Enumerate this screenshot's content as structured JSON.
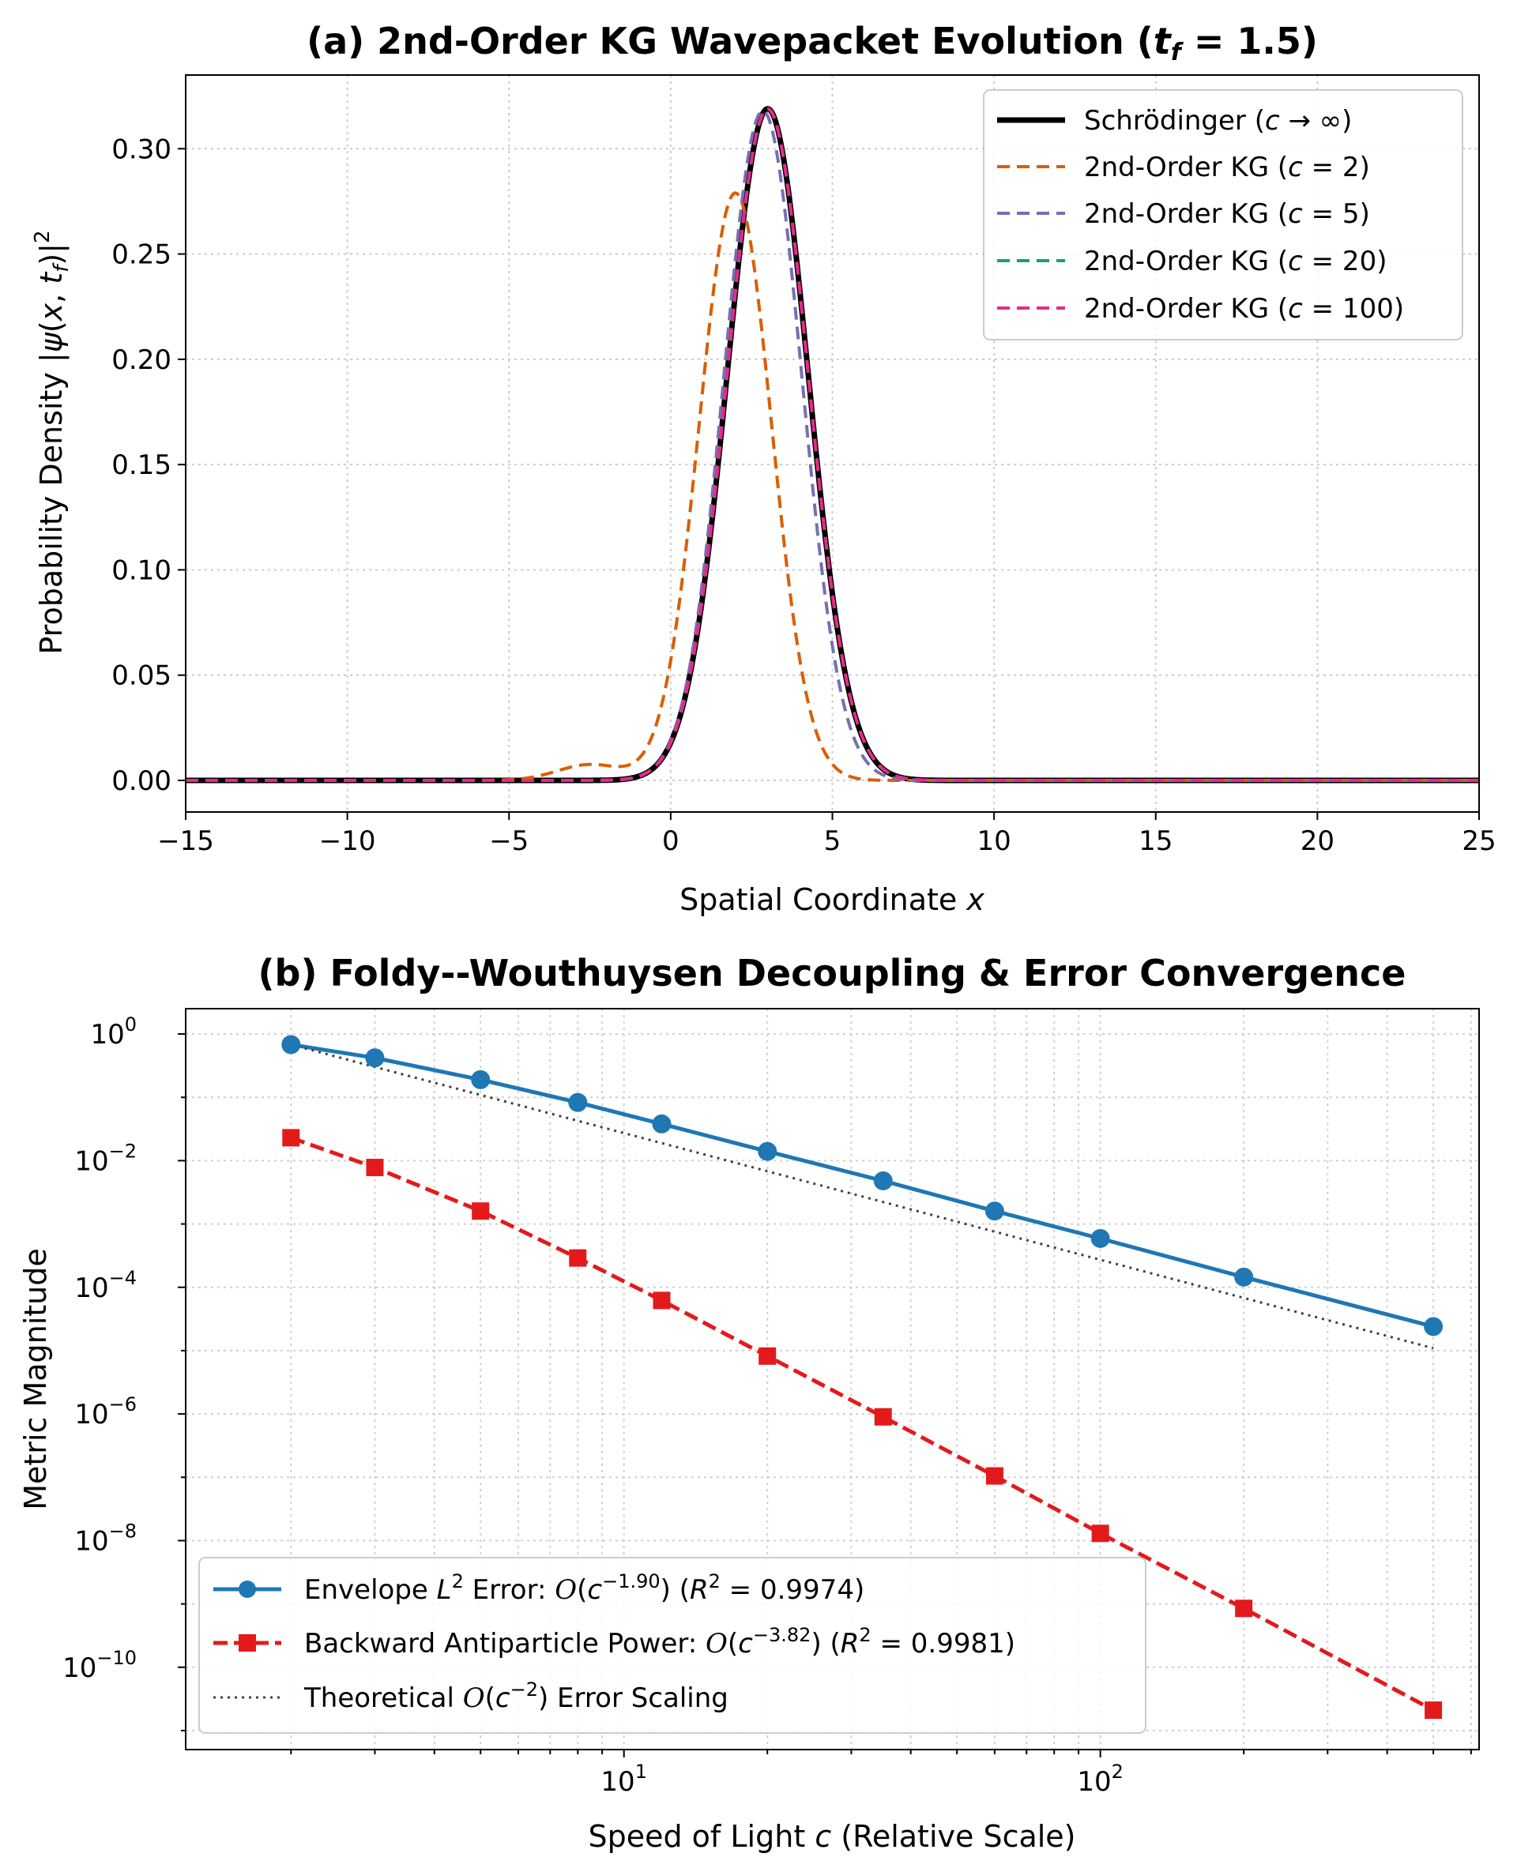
{
  "chart_data": [
    {
      "type": "line",
      "title": "(a) 2nd-Order KG Wavepacket Evolution (t_f = 1.5)",
      "title_parts": [
        "(a) 2nd-Order KG Wavepacket Evolution (",
        "t",
        "f",
        " = 1.5)"
      ],
      "xlabel": "Spatial Coordinate x",
      "xlabel_parts": [
        "Spatial Coordinate ",
        "x"
      ],
      "ylabel": "Probability Density |ψ(x, t_f)|²",
      "ylabel_parts": [
        "Probability Density |",
        "ψ",
        "(",
        "x",
        ", ",
        "t",
        "f",
        ")|",
        "2"
      ],
      "xlim": [
        -15,
        25
      ],
      "ylim": [
        -0.015,
        0.335
      ],
      "xticks": [
        -15,
        -10,
        -5,
        0,
        5,
        10,
        15,
        20,
        25
      ],
      "xtick_labels": [
        "−15",
        "−10",
        "−5",
        "0",
        "5",
        "10",
        "15",
        "20",
        "25"
      ],
      "yticks": [
        0.0,
        0.05,
        0.1,
        0.15,
        0.2,
        0.25,
        0.3
      ],
      "ytick_labels": [
        "0.00",
        "0.05",
        "0.10",
        "0.15",
        "0.20",
        "0.25",
        "0.30"
      ],
      "grid": true,
      "legend_position": "top-right",
      "series": [
        {
          "name": "Schrödinger (c → ∞)",
          "color": "#000000",
          "style": "solid",
          "peak_x": 3.0,
          "peak_y": 0.319,
          "width": 1.25,
          "bump": null
        },
        {
          "name": "2nd-Order KG (c = 2)",
          "color": "#d95f02",
          "style": "dashed",
          "peak_x": 2.0,
          "peak_y": 0.279,
          "width": 1.12,
          "bump": {
            "x": -2.5,
            "y": 0.0075,
            "w": 1.0
          }
        },
        {
          "name": "2nd-Order KG (c = 5)",
          "color": "#7570b3",
          "style": "dashed",
          "peak_x": 2.85,
          "peak_y": 0.318,
          "width": 1.2,
          "bump": null
        },
        {
          "name": "2nd-Order KG (c = 20)",
          "color": "#1b9e77",
          "style": "dashed",
          "peak_x": 3.0,
          "peak_y": 0.319,
          "width": 1.25,
          "bump": null
        },
        {
          "name": "2nd-Order KG (c = 100)",
          "color": "#e7298a",
          "style": "dashed",
          "peak_x": 3.0,
          "peak_y": 0.319,
          "width": 1.25,
          "bump": null
        }
      ],
      "legend_labels": [
        [
          "Schrödinger (",
          "c",
          " → ∞)"
        ],
        [
          "2nd-Order KG (",
          "c",
          " = 2)"
        ],
        [
          "2nd-Order KG (",
          "c",
          " = 5)"
        ],
        [
          "2nd-Order KG (",
          "c",
          " = 20)"
        ],
        [
          "2nd-Order KG (",
          "c",
          " = 100)"
        ]
      ]
    },
    {
      "type": "line",
      "scale": "log-log",
      "title": "(b) Foldy--Wouthuysen Decoupling & Error Convergence",
      "xlabel": "Speed of Light c (Relative Scale)",
      "xlabel_parts": [
        "Speed of Light ",
        "c",
        " (Relative Scale)"
      ],
      "ylabel": "Metric Magnitude",
      "xlim_log10": [
        0.08,
        2.795
      ],
      "ylim_log10": [
        -11.3,
        0.4
      ],
      "xticks_log10": [
        1,
        2
      ],
      "xtick_labels": [
        [
          "10",
          "1"
        ],
        [
          "10",
          "2"
        ]
      ],
      "yticks_log10": [
        0,
        -2,
        -4,
        -6,
        -8,
        -10
      ],
      "ytick_labels": [
        [
          "10",
          "0"
        ],
        [
          "10",
          "−2"
        ],
        [
          "10",
          "−4"
        ],
        [
          "10",
          "−6"
        ],
        [
          "10",
          "−8"
        ],
        [
          "10",
          "−10"
        ]
      ],
      "grid": true,
      "legend_position": "bottom-left",
      "x": [
        2,
        3,
        5,
        8,
        12,
        20,
        35,
        60,
        100,
        200,
        500
      ],
      "series": [
        {
          "name": "Envelope L² Error: O(c^−1.90) (R² = 0.9974)",
          "color": "#1f77b4",
          "style": "solid",
          "marker": "circle",
          "values": [
            0.68,
            0.42,
            0.19,
            0.083,
            0.038,
            0.014,
            0.0048,
            0.0016,
            0.00059,
            0.000145,
            2.4e-05
          ]
        },
        {
          "name": "Backward Antiparticle Power: O(c^−3.82) (R² = 0.9981)",
          "color": "#e31a1c",
          "style": "dashed",
          "marker": "square",
          "values": [
            0.023,
            0.0078,
            0.0016,
            0.00029,
            6.2e-05,
            8.2e-06,
            9e-07,
            1.05e-07,
            1.3e-08,
            8.5e-10,
            2.1e-11
          ]
        },
        {
          "name": "Theoretical O(c^−2) Error Scaling",
          "color": "#404040",
          "style": "dotted",
          "marker": "none",
          "values": [
            0.68,
            0.302,
            0.109,
            0.0425,
            0.0189,
            0.0068,
            0.00222,
            0.000756,
            0.000272,
            6.8e-05,
            1.09e-05
          ]
        }
      ],
      "legend_labels": [
        [
          "Envelope ",
          "L",
          "2",
          " Error: ",
          "O",
          "(",
          "c",
          "−1.90",
          ") (",
          "R",
          "2",
          " = 0.9974)"
        ],
        [
          "Backward Antiparticle Power: ",
          "O",
          "(",
          "c",
          "−3.82",
          ") (",
          "R",
          "2",
          " = 0.9981)"
        ],
        [
          "Theoretical ",
          "O",
          "(",
          "c",
          "−2",
          ") Error Scaling"
        ]
      ]
    }
  ]
}
